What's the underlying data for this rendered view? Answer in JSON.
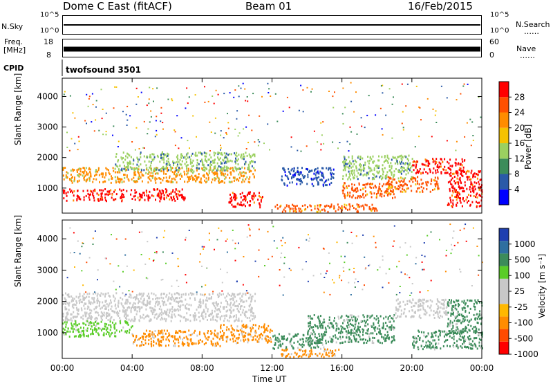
{
  "header": {
    "station": "Dome C East (fitACF)",
    "beam": "Beam 01",
    "date": "16/Feb/2015"
  },
  "status_rows": {
    "nsky_label": "N.Sky",
    "nsky_ticks": [
      "10^5",
      "10^0"
    ],
    "nsearch_label": "N.Search",
    "nsearch_ticks": [
      "10^5",
      "10^0"
    ],
    "freq_label_1": "Freq.",
    "freq_label_2": "[MHz]",
    "freq_ticks": [
      "18",
      "8"
    ],
    "nave_label": "Nave",
    "nave_ticks": [
      "60",
      "0"
    ],
    "dots": "……",
    "cpid_label": "CPID",
    "cpid_value": "twofsound 3501"
  },
  "colors": {
    "power": [
      "#0000ff",
      "#2a5aa8",
      "#3c8c5a",
      "#9bd060",
      "#f5c200",
      "#ff8c00",
      "#ff5000",
      "#ff0000"
    ],
    "velocity": [
      "#ff0000",
      "#ff4b00",
      "#ff8c00",
      "#ffb800",
      "#c8c8c8",
      "#c8c8c8",
      "#5acd28",
      "#3c8c5a",
      "#2e6fa0",
      "#1f3fb0"
    ]
  },
  "chart_data": [
    {
      "type": "heatmap",
      "title": "Power",
      "ylabel": "Slant Range [km]",
      "ylim": [
        180,
        4600
      ],
      "yticks": [
        "4000",
        "3000",
        "2000",
        "1000"
      ],
      "ytick_values": [
        4000,
        3000,
        2000,
        1000
      ],
      "xlim": [
        0,
        24
      ],
      "colorbar_label": "Power [dB]",
      "colorbar_ticks": [
        "28",
        "24",
        "20",
        "16",
        "12",
        "8",
        "4"
      ],
      "colorbar_range": [
        0,
        32
      ],
      "echo_regions": [
        {
          "x": [
            0.0,
            7.0
          ],
          "y": [
            600,
            1000
          ],
          "level": 29
        },
        {
          "x": [
            0.0,
            11.0
          ],
          "y": [
            1200,
            1700
          ],
          "level": 22
        },
        {
          "x": [
            3.0,
            11.0
          ],
          "y": [
            1600,
            2200
          ],
          "level": 13
        },
        {
          "x": [
            9.5,
            11.5
          ],
          "y": [
            400,
            900
          ],
          "level": 28
        },
        {
          "x": [
            12.0,
            18.0
          ],
          "y": [
            250,
            500
          ],
          "level": 27
        },
        {
          "x": [
            12.5,
            15.5
          ],
          "y": [
            1100,
            1700
          ],
          "level": 6
        },
        {
          "x": [
            16.0,
            19.0
          ],
          "y": [
            700,
            1200
          ],
          "level": 26
        },
        {
          "x": [
            16.0,
            20.0
          ],
          "y": [
            1300,
            2100
          ],
          "level": 12
        },
        {
          "x": [
            18.5,
            21.5
          ],
          "y": [
            900,
            1400
          ],
          "level": 26
        },
        {
          "x": [
            20.0,
            23.0
          ],
          "y": [
            1500,
            2000
          ],
          "level": 28
        },
        {
          "x": [
            22.0,
            24.0
          ],
          "y": [
            400,
            1600
          ],
          "level": 29
        }
      ]
    },
    {
      "type": "heatmap",
      "title": "Velocity",
      "ylabel": "Slant Range [km]",
      "ylim": [
        180,
        4600
      ],
      "yticks": [
        "4000",
        "3000",
        "2000",
        "1000"
      ],
      "ytick_values": [
        4000,
        3000,
        2000,
        1000
      ],
      "xlim": [
        0,
        24
      ],
      "xlabel": "Time UT",
      "xticks": [
        "00:00",
        "04:00",
        "08:00",
        "12:00",
        "16:00",
        "20:00",
        "00:00"
      ],
      "xtick_values": [
        0,
        4,
        8,
        12,
        16,
        20,
        24
      ],
      "colorbar_label": "Velocity [m s⁻¹]",
      "colorbar_ticks": [
        "1000",
        "500",
        "100",
        "25",
        "-25",
        "-100",
        "-500",
        "-1000"
      ],
      "echo_regions": [
        {
          "x": [
            0.0,
            11.0
          ],
          "y": [
            1400,
            2300
          ],
          "level": 0
        },
        {
          "x": [
            0.0,
            4.0
          ],
          "y": [
            900,
            1400
          ],
          "level": 50
        },
        {
          "x": [
            4.0,
            9.0
          ],
          "y": [
            600,
            1100
          ],
          "level": -90
        },
        {
          "x": [
            9.0,
            12.0
          ],
          "y": [
            700,
            1300
          ],
          "level": -40
        },
        {
          "x": [
            12.0,
            15.0
          ],
          "y": [
            500,
            1000
          ],
          "level": 400
        },
        {
          "x": [
            14.0,
            19.0
          ],
          "y": [
            700,
            1600
          ],
          "level": 200
        },
        {
          "x": [
            12.5,
            16.0
          ],
          "y": [
            250,
            500
          ],
          "level": -60
        },
        {
          "x": [
            19.0,
            22.0
          ],
          "y": [
            1500,
            2100
          ],
          "level": 0
        },
        {
          "x": [
            20.0,
            24.0
          ],
          "y": [
            500,
            1100
          ],
          "level": 120
        },
        {
          "x": [
            22.0,
            24.0
          ],
          "y": [
            1000,
            2100
          ],
          "level": 150
        }
      ]
    }
  ]
}
